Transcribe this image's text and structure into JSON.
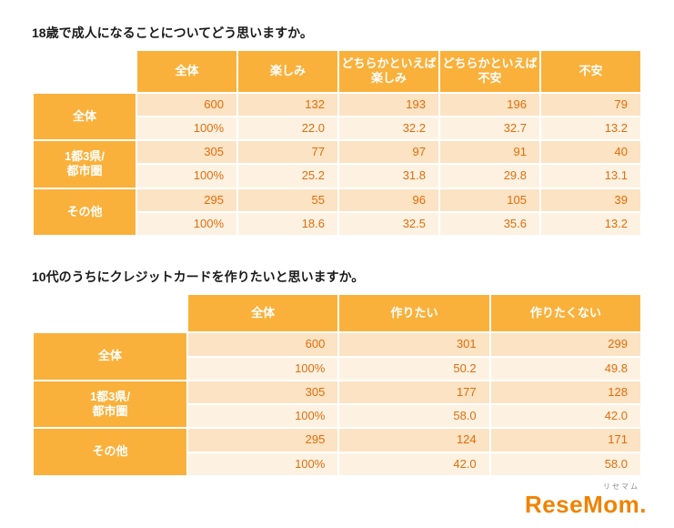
{
  "chart_data": [
    {
      "type": "table",
      "title": "18歳で成人になることについてどう思いますか。",
      "columns": [
        "全体",
        "楽しみ",
        "どちらかといえば\n楽しみ",
        "どちらかといえば\n不安",
        "不安"
      ],
      "rows": [
        {
          "label": "全体",
          "count": [
            "600",
            "132",
            "193",
            "196",
            "79"
          ],
          "percent": [
            "100%",
            "22.0",
            "32.2",
            "32.7",
            "13.2"
          ]
        },
        {
          "label": "1都3県/\n都市圏",
          "count": [
            "305",
            "77",
            "97",
            "91",
            "40"
          ],
          "percent": [
            "100%",
            "25.2",
            "31.8",
            "29.8",
            "13.1"
          ]
        },
        {
          "label": "その他",
          "count": [
            "295",
            "55",
            "96",
            "105",
            "39"
          ],
          "percent": [
            "100%",
            "18.6",
            "32.5",
            "35.6",
            "13.2"
          ]
        }
      ]
    },
    {
      "type": "table",
      "title": "10代のうちにクレジットカードを作りたいと思いますか。",
      "columns": [
        "全体",
        "作りたい",
        "作りたくない"
      ],
      "rows": [
        {
          "label": "全体",
          "count": [
            "600",
            "301",
            "299"
          ],
          "percent": [
            "100%",
            "50.2",
            "49.8"
          ]
        },
        {
          "label": "1都3県/\n都市圏",
          "count": [
            "305",
            "177",
            "128"
          ],
          "percent": [
            "100%",
            "58.0",
            "42.0"
          ]
        },
        {
          "label": "その他",
          "count": [
            "295",
            "124",
            "171"
          ],
          "percent": [
            "100%",
            "42.0",
            "58.0"
          ]
        }
      ]
    }
  ],
  "logo": {
    "text": "ReseMom",
    "dot": ".",
    "ruby": "リセマム"
  },
  "colors": {
    "header_orange": "#F9B13B",
    "band_dark": "#FBE3C3",
    "band_light": "#FDF2E2",
    "number_text": "#E36C0A",
    "title_text": "#1A1A1A",
    "logo_orange": "#F08300",
    "logo_ruby_gray": "#8A8A8A"
  }
}
